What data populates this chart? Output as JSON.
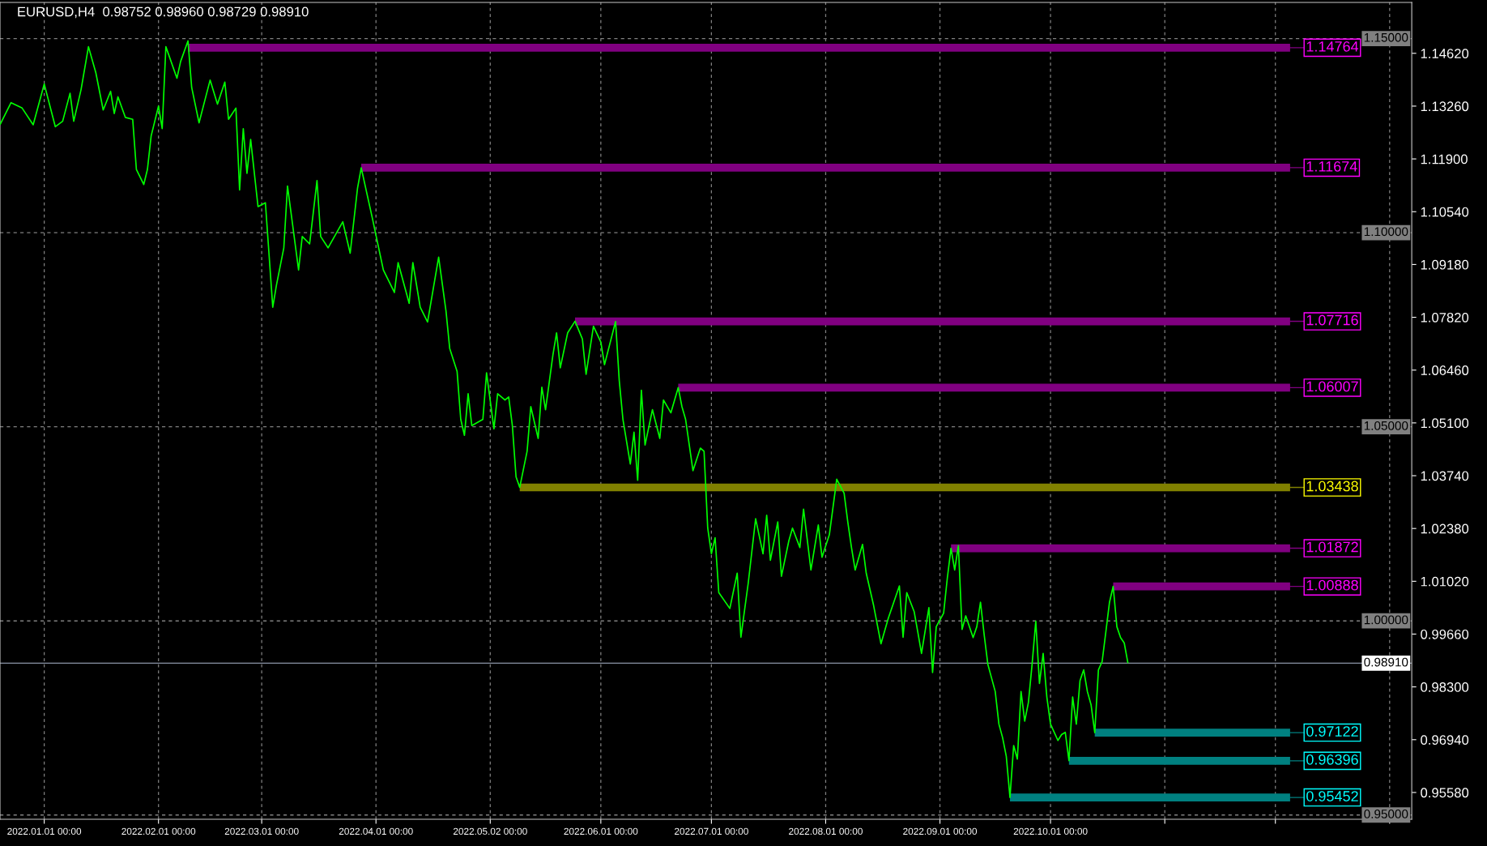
{
  "chart_data": {
    "type": "line",
    "title": "EURUSD,H4  0.98752 0.98960 0.98729 0.98910",
    "xlim": [
      "2021-12-20",
      "2023-01-07"
    ],
    "ylim": [
      0.9489,
      1.1593
    ],
    "xticks": [
      {
        "value": "2022-01-01",
        "label": "2022.01.01 00:00"
      },
      {
        "value": "2022-02-01",
        "label": "2022.02.01 00:00"
      },
      {
        "value": "2022-03-01",
        "label": "2022.03.01 00:00"
      },
      {
        "value": "2022-04-01",
        "label": "2022.04.01 00:00"
      },
      {
        "value": "2022-05-02",
        "label": "2022.05.02 00:00"
      },
      {
        "value": "2022-06-01",
        "label": "2022.06.01 00:00"
      },
      {
        "value": "2022-07-01",
        "label": "2022.07.01 00:00"
      },
      {
        "value": "2022-08-01",
        "label": "2022.08.01 00:00"
      },
      {
        "value": "2022-09-01",
        "label": "2022.09.01 00:00"
      },
      {
        "value": "2022-10-01",
        "label": "2022.10.01 00:00"
      },
      {
        "value": "2022-11-01",
        "label": null
      },
      {
        "value": "2022-12-01",
        "label": null
      },
      {
        "value": "2023-01-01",
        "label": null
      }
    ],
    "yticks": [
      {
        "value": 1.1462,
        "label": "1.14620"
      },
      {
        "value": 1.1326,
        "label": "1.13260"
      },
      {
        "value": 1.119,
        "label": "1.11900"
      },
      {
        "value": 1.1054,
        "label": "1.10540"
      },
      {
        "value": 1.0918,
        "label": "1.09180"
      },
      {
        "value": 1.0782,
        "label": "1.07820"
      },
      {
        "value": 1.0646,
        "label": "1.06460"
      },
      {
        "value": 1.051,
        "label": "1.05100"
      },
      {
        "value": 1.0374,
        "label": "1.03740"
      },
      {
        "value": 1.0238,
        "label": "1.02380"
      },
      {
        "value": 1.0102,
        "label": "1.01020"
      },
      {
        "value": 0.9966,
        "label": "0.99660"
      },
      {
        "value": 0.983,
        "label": "0.98300"
      },
      {
        "value": 0.9694,
        "label": "0.96940"
      },
      {
        "value": 0.9558,
        "label": "0.95580"
      }
    ],
    "grid": "x",
    "ref_lines": [
      {
        "axis": "y",
        "value": 1.15,
        "label": "1.15000",
        "color": "#808080",
        "line_style": "dotted"
      },
      {
        "axis": "y",
        "value": 1.1,
        "label": "1.10000",
        "color": "#808080",
        "line_style": "dotted"
      },
      {
        "axis": "y",
        "value": 1.05,
        "label": "1.05000",
        "color": "#808080",
        "line_style": "dotted"
      },
      {
        "axis": "y",
        "value": 1.0,
        "label": "1.00000",
        "color": "#808080",
        "line_style": "dotted"
      },
      {
        "axis": "y",
        "value": 0.95,
        "label": "0.95000",
        "color": "#808080",
        "line_style": "dotted"
      },
      {
        "axis": "y",
        "value": 0.9891,
        "label": "0.98910",
        "color": "#8a94a6",
        "line_style": "solid"
      }
    ],
    "series": [
      {
        "color": "#00ff00",
        "x": [
          "2021-12-20",
          "2021-12-23",
          "2021-12-26",
          "2021-12-29",
          "2022-01-01",
          "2022-01-04",
          "2022-01-06",
          "2022-01-08",
          "2022-01-09",
          "2022-01-11",
          "2022-01-13",
          "2022-01-15",
          "2022-01-17",
          "2022-01-19",
          "2022-01-20",
          "2022-01-21",
          "2022-01-23",
          "2022-01-25",
          "2022-01-26",
          "2022-01-28",
          "2022-01-29",
          "2022-01-30",
          "2022-02-01",
          "2022-02-02",
          "2022-02-03",
          "2022-02-06",
          "2022-02-07",
          "2022-02-09",
          "2022-02-10",
          "2022-02-12",
          "2022-02-15",
          "2022-02-17",
          "2022-02-19",
          "2022-02-20",
          "2022-02-22",
          "2022-02-23",
          "2022-02-24",
          "2022-02-25",
          "2022-02-26",
          "2022-02-28",
          "2022-03-02",
          "2022-03-04",
          "2022-03-05",
          "2022-03-07",
          "2022-03-08",
          "2022-03-11",
          "2022-03-12",
          "2022-03-14",
          "2022-03-16",
          "2022-03-17",
          "2022-03-19",
          "2022-03-23",
          "2022-03-25",
          "2022-03-27",
          "2022-03-28",
          "2022-03-31",
          "2022-04-03",
          "2022-04-06",
          "2022-04-07",
          "2022-04-10",
          "2022-04-11",
          "2022-04-13",
          "2022-04-15",
          "2022-04-18",
          "2022-04-20",
          "2022-04-21",
          "2022-04-23",
          "2022-04-24",
          "2022-04-25",
          "2022-04-26",
          "2022-04-27",
          "2022-04-30",
          "2022-05-01",
          "2022-05-03",
          "2022-05-04",
          "2022-05-06",
          "2022-05-07",
          "2022-05-08",
          "2022-05-09",
          "2022-05-10",
          "2022-05-12",
          "2022-05-13",
          "2022-05-15",
          "2022-05-16",
          "2022-05-17",
          "2022-05-19",
          "2022-05-20",
          "2022-05-21",
          "2022-05-23",
          "2022-05-25",
          "2022-05-27",
          "2022-05-28",
          "2022-05-30",
          "2022-06-01",
          "2022-06-02",
          "2022-06-04",
          "2022-06-05",
          "2022-06-06",
          "2022-06-07",
          "2022-06-09",
          "2022-06-10",
          "2022-06-11",
          "2022-06-12",
          "2022-06-13",
          "2022-06-15",
          "2022-06-17",
          "2022-06-18",
          "2022-06-20",
          "2022-06-22",
          "2022-06-23",
          "2022-06-24",
          "2022-06-26",
          "2022-06-28",
          "2022-06-29",
          "2022-06-30",
          "2022-07-01",
          "2022-07-02",
          "2022-07-03",
          "2022-07-06",
          "2022-07-08",
          "2022-07-09",
          "2022-07-11",
          "2022-07-12",
          "2022-07-13",
          "2022-07-15",
          "2022-07-16",
          "2022-07-17",
          "2022-07-19",
          "2022-07-20",
          "2022-07-22",
          "2022-07-23",
          "2022-07-25",
          "2022-07-26",
          "2022-07-28",
          "2022-07-30",
          "2022-07-31",
          "2022-08-02",
          "2022-08-04",
          "2022-08-06",
          "2022-08-07",
          "2022-08-08",
          "2022-08-09",
          "2022-08-11",
          "2022-08-12",
          "2022-08-14",
          "2022-08-16",
          "2022-08-18",
          "2022-08-21",
          "2022-08-22",
          "2022-08-23",
          "2022-08-25",
          "2022-08-26",
          "2022-08-27",
          "2022-08-29",
          "2022-08-30",
          "2022-08-31",
          "2022-09-02",
          "2022-09-03",
          "2022-09-04",
          "2022-09-05",
          "2022-09-06",
          "2022-09-07",
          "2022-09-08",
          "2022-09-10",
          "2022-09-11",
          "2022-09-12",
          "2022-09-13",
          "2022-09-14",
          "2022-09-15",
          "2022-09-16",
          "2022-09-17",
          "2022-09-18",
          "2022-09-19",
          "2022-09-20",
          "2022-09-21",
          "2022-09-22",
          "2022-09-23",
          "2022-09-24",
          "2022-09-25",
          "2022-09-26",
          "2022-09-27",
          "2022-09-28",
          "2022-09-29",
          "2022-09-30",
          "2022-10-01",
          "2022-10-02",
          "2022-10-03",
          "2022-10-04",
          "2022-10-05",
          "2022-10-06",
          "2022-10-07",
          "2022-10-08",
          "2022-10-09",
          "2022-10-10",
          "2022-10-11",
          "2022-10-12",
          "2022-10-13",
          "2022-10-14",
          "2022-10-15",
          "2022-10-16",
          "2022-10-17",
          "2022-10-18",
          "2022-10-19",
          "2022-10-20",
          "2022-10-21",
          "2022-10-22"
        ],
        "values": [
          1.1278,
          1.1335,
          1.1321,
          1.1278,
          1.1383,
          1.1273,
          1.1287,
          1.1359,
          1.1287,
          1.1369,
          1.1479,
          1.1412,
          1.1316,
          1.1364,
          1.1307,
          1.135,
          1.1297,
          1.1292,
          1.1163,
          1.1124,
          1.1163,
          1.1249,
          1.1326,
          1.1268,
          1.1479,
          1.1398,
          1.1441,
          1.1494,
          1.1374,
          1.1283,
          1.1393,
          1.1331,
          1.1388,
          1.1292,
          1.1321,
          1.111,
          1.1268,
          1.1153,
          1.124,
          1.1067,
          1.1077,
          1.0808,
          1.0865,
          1.0961,
          1.112,
          1.0904,
          1.099,
          1.0971,
          1.1134,
          1.099,
          1.0961,
          1.1028,
          1.0947,
          1.1115,
          1.1167,
          1.1038,
          1.0904,
          1.0846,
          1.0923,
          1.0818,
          1.0923,
          1.0808,
          1.077,
          1.0937,
          1.0798,
          1.0702,
          1.0643,
          1.0519,
          1.0478,
          1.0585,
          1.0503,
          1.0519,
          1.0639,
          1.0495,
          1.0585,
          1.0569,
          1.0577,
          1.0503,
          1.0371,
          1.0344,
          1.0437,
          1.0552,
          1.047,
          1.0602,
          1.0544,
          1.0685,
          1.0742,
          1.0652,
          1.0742,
          1.0772,
          1.0726,
          1.0635,
          1.0759,
          1.0718,
          1.066,
          1.0734,
          1.0771,
          1.0619,
          1.0519,
          1.0404,
          1.0486,
          1.0362,
          1.0594,
          1.0453,
          1.0544,
          1.047,
          1.0569,
          1.0536,
          1.0601,
          1.0552,
          1.0519,
          1.0387,
          1.0445,
          1.0437,
          1.0239,
          1.0173,
          1.0214,
          1.0073,
          1.0032,
          1.0123,
          0.9958,
          1.0098,
          1.0181,
          1.0263,
          1.0173,
          1.0272,
          1.0156,
          1.0255,
          1.0115,
          1.0206,
          1.0239,
          1.0189,
          1.0288,
          1.0131,
          1.0247,
          1.0164,
          1.0222,
          1.0365,
          1.0329,
          1.0255,
          1.0189,
          1.0131,
          1.0197,
          1.0123,
          1.004,
          0.9941,
          1.0007,
          1.009,
          0.9958,
          1.0073,
          1.0024,
          0.9971,
          0.9916,
          1.0034,
          0.9867,
          0.9985,
          1.002,
          1.011,
          1.0187,
          1.0131,
          1.0194,
          0.9978,
          1.0013,
          0.9957,
          0.9985,
          1.0048,
          0.9964,
          0.9888,
          0.9853,
          0.9818,
          0.9734,
          0.9699,
          0.9651,
          0.9545,
          0.9679,
          0.9644,
          0.9818,
          0.9742,
          0.979,
          0.9888,
          0.9999,
          0.9839,
          0.9916,
          0.9804,
          0.9734,
          0.9713,
          0.9692,
          0.9707,
          0.9713,
          0.964,
          0.9804,
          0.9734,
          0.9846,
          0.9874,
          0.9818,
          0.9784,
          0.9712,
          0.9874,
          0.9895,
          0.9971,
          1.0048,
          1.0089,
          0.9985,
          0.9957,
          0.9943,
          0.9891
        ]
      },
      {
        "color": "#800080",
        "x": [
          "2022-02-09",
          "2022-12-05"
        ],
        "values": [
          1.14764,
          1.14764
        ],
        "value_labels": [
          null,
          "1.14764"
        ]
      },
      {
        "color": "#800080",
        "x": [
          "2022-03-28",
          "2022-12-05"
        ],
        "values": [
          1.11674,
          1.11674
        ],
        "value_labels": [
          null,
          "1.11674"
        ]
      },
      {
        "color": "#800080",
        "x": [
          "2022-05-25",
          "2022-12-05"
        ],
        "values": [
          1.07716,
          1.07716
        ],
        "value_labels": [
          null,
          "1.07716"
        ]
      },
      {
        "color": "#800080",
        "x": [
          "2022-06-22",
          "2022-12-05"
        ],
        "values": [
          1.06007,
          1.06007
        ],
        "value_labels": [
          null,
          "1.06007"
        ]
      },
      {
        "color": "#808000",
        "x": [
          "2022-05-10",
          "2022-12-05"
        ],
        "values": [
          1.03438,
          1.03438
        ],
        "value_labels": [
          null,
          "1.03438"
        ]
      },
      {
        "color": "#800080",
        "x": [
          "2022-09-04",
          "2022-12-05"
        ],
        "values": [
          1.01872,
          1.01872
        ],
        "value_labels": [
          null,
          "1.01872"
        ]
      },
      {
        "color": "#800080",
        "x": [
          "2022-10-18",
          "2022-12-05"
        ],
        "values": [
          1.00888,
          1.00888
        ],
        "value_labels": [
          null,
          "1.00888"
        ]
      },
      {
        "color": "#008080",
        "x": [
          "2022-10-13",
          "2022-12-05"
        ],
        "values": [
          0.97122,
          0.97122
        ],
        "value_labels": [
          null,
          "0.97122"
        ]
      },
      {
        "color": "#008080",
        "x": [
          "2022-10-06",
          "2022-12-05"
        ],
        "values": [
          0.96396,
          0.96396
        ],
        "value_labels": [
          null,
          "0.96396"
        ]
      },
      {
        "color": "#008080",
        "x": [
          "2022-09-20",
          "2022-12-05"
        ],
        "values": [
          0.95452,
          0.95452
        ],
        "value_labels": [
          null,
          "0.95452"
        ]
      }
    ]
  }
}
